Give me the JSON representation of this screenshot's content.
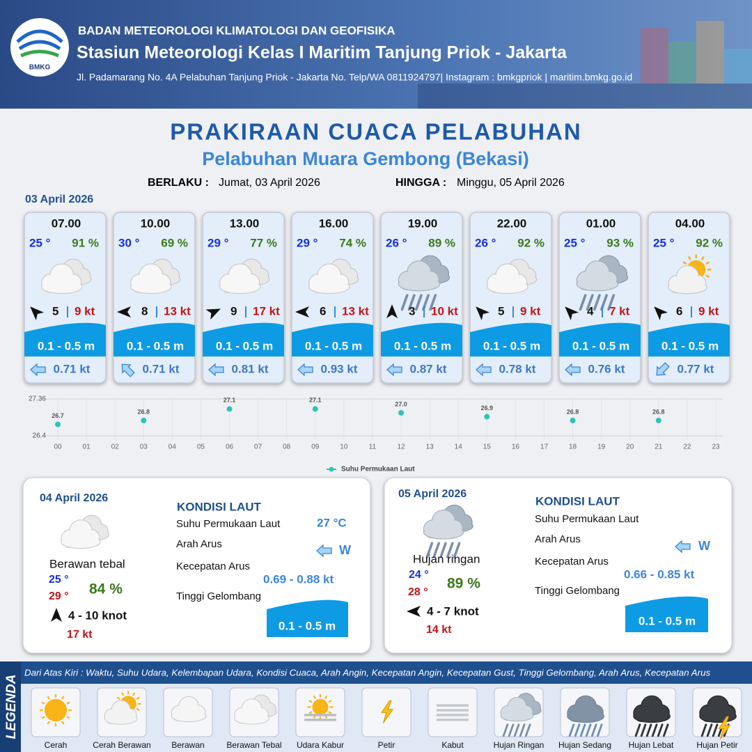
{
  "header": {
    "logo": "BMKG",
    "agency": "BADAN METEOROLOGI KLIMATOLOGI DAN GEOFISIKA",
    "station": "Stasiun Meteorologi Kelas I Maritim Tanjung Priok - Jakarta",
    "address": "Jl. Padamarang No. 4A Pelabuhan Tanjung Priok - Jakarta No. Telp/WA 0811924797| Instagram : bmkgpriok | maritim.bmkg.go.id"
  },
  "title": "PRAKIRAAN CUACA PELABUHAN",
  "subtitle": "Pelabuhan Muara Gembong (Bekasi)",
  "validity": {
    "from_label": "BERLAKU :",
    "from": "Jumat, 03 April 2026",
    "to_label": "HINGGA :",
    "to": "Minggu, 05 April 2026"
  },
  "day1": "03 April 2026",
  "cards": [
    {
      "time": "07.00",
      "temp": "25 °",
      "humidity": "91 %",
      "wind": "5",
      "gust": "9 kt",
      "wave": "0.1 - 0.5 m",
      "current": "0.71 kt"
    },
    {
      "time": "10.00",
      "temp": "30 °",
      "humidity": "69 %",
      "wind": "8",
      "gust": "13 kt",
      "wave": "0.1 - 0.5 m",
      "current": "0.71 kt"
    },
    {
      "time": "13.00",
      "temp": "29 °",
      "humidity": "77 %",
      "wind": "9",
      "gust": "17 kt",
      "wave": "0.1 - 0.5 m",
      "current": "0.81 kt"
    },
    {
      "time": "16.00",
      "temp": "29 °",
      "humidity": "74 %",
      "wind": "6",
      "gust": "13 kt",
      "wave": "0.1 - 0.5 m",
      "current": "0.93 kt"
    },
    {
      "time": "19.00",
      "temp": "26 °",
      "humidity": "89 %",
      "wind": "3",
      "gust": "10 kt",
      "wave": "0.1 - 0.5 m",
      "current": "0.87 kt"
    },
    {
      "time": "22.00",
      "temp": "26 °",
      "humidity": "92 %",
      "wind": "5",
      "gust": "9 kt",
      "wave": "0.1 - 0.5 m",
      "current": "0.78 kt"
    },
    {
      "time": "01.00",
      "temp": "25 °",
      "humidity": "93 %",
      "wind": "4",
      "gust": "7 kt",
      "wave": "0.1 - 0.5 m",
      "current": "0.76 kt"
    },
    {
      "time": "04.00",
      "temp": "25 °",
      "humidity": "92 %",
      "wind": "6",
      "gust": "9 kt",
      "wave": "0.1 - 0.5 m",
      "current": "0.77 kt"
    }
  ],
  "chart_data": {
    "type": "scatter",
    "x": [
      0,
      3,
      6,
      9,
      12,
      15,
      18,
      21
    ],
    "xlim": [
      0,
      23
    ],
    "xticks": [
      {
        "value": 0,
        "label": "00"
      },
      {
        "value": 1,
        "label": "01"
      },
      {
        "value": 2,
        "label": "02"
      },
      {
        "value": 3,
        "label": "03"
      },
      {
        "value": 4,
        "label": "04"
      },
      {
        "value": 5,
        "label": "05"
      },
      {
        "value": 6,
        "label": "06"
      },
      {
        "value": 7,
        "label": "07"
      },
      {
        "value": 8,
        "label": "08"
      },
      {
        "value": 9,
        "label": "09"
      },
      10,
      11,
      12,
      13,
      14,
      15,
      16,
      17,
      18,
      19,
      20,
      21,
      22,
      23
    ],
    "ylim": [
      26.4,
      27.36
    ],
    "yticks": [
      26.4,
      27.36
    ],
    "grid": true,
    "series": [
      {
        "name": "Suhu Permukaan Laut",
        "color": "#2ec4b6",
        "values": [
          26.7,
          26.8,
          27.1,
          27.1,
          27,
          26.9,
          26.8,
          26.8
        ],
        "value_labels": [
          "26.7",
          "26.8",
          "27.1",
          "27.1",
          "27.0",
          "26.9",
          "26.8",
          "26.8"
        ]
      }
    ]
  },
  "panels": [
    {
      "date": "04 April 2026",
      "condition": "Berawan tebal",
      "temp_min": "25 °",
      "temp_max": "29 °",
      "humidity": "84 %",
      "wind": "4  - 10 knot",
      "gust": "17 kt",
      "heading": "KONDISI LAUT",
      "sst_label": "Suhu Permukaan Laut",
      "dir_label": "Arah Arus",
      "speed_label": "Kecepatan Arus",
      "wave_label": "Tinggi Gelombang",
      "sst": "27 °C",
      "current_dir": "W",
      "current_speed": "0.69  - 0.88 kt",
      "wave": "0.1 - 0.5 m"
    },
    {
      "date": "05 April 2026",
      "condition": "Hujan ringan",
      "temp_min": "24 °",
      "temp_max": "28 °",
      "humidity": "89 %",
      "wind": "4  - 7 knot",
      "gust": "14 kt",
      "heading": "KONDISI LAUT",
      "sst_label": "Suhu Permukaan Laut",
      "dir_label": "Arah Arus",
      "speed_label": "Kecepatan Arus",
      "wave_label": "Tinggi Gelombang",
      "current_dir": "W",
      "current_speed": "0.66  - 0.85 kt",
      "wave": "0.1 - 0.5 m"
    }
  ],
  "legend": {
    "title": "LEGENDA",
    "description": "Dari Atas Kiri : Waktu, Suhu Udara, Kelembapan Udara, Kondisi Cuaca, Arah Angin, Kecepatan Angin, Kecepatan Gust, Tinggi Gelombang, Arah Arus, Kecepatan Arus",
    "items": [
      "Cerah",
      "Cerah Berawan",
      "Berawan",
      "Berawan Tebal",
      "Udara Kabur",
      "Petir",
      "Kabut",
      "Hujan Ringan",
      "Hujan Sedang",
      "Hujan Lebat",
      "Hujan Petir"
    ]
  }
}
